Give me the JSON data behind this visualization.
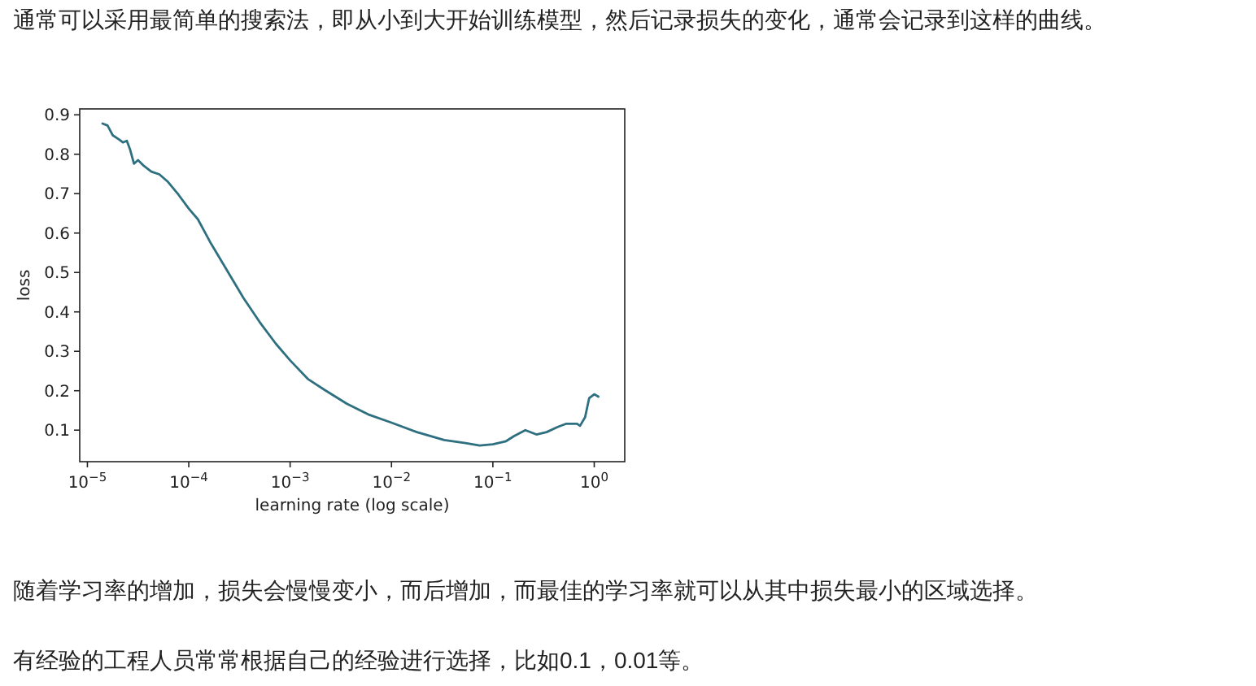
{
  "chart_data": {
    "type": "line",
    "xlabel": "learning rate (log scale)",
    "ylabel": "loss",
    "log": "x",
    "grid": false,
    "annotations": [
      "通常可以采用最简单的搜索法，即从小到大开始训练模型，然后记录损失的变化，通常会记录到这样的曲线。",
      "随着学习率的增加，损失会慢慢变小，而后增加，而最佳的学习率就可以从其中损失最小的区域选择。",
      "有经验的工程人员常常根据自己的经验进行选择，比如0.1，0.01等。"
    ],
    "xlim": [
      8.4e-06,
      2.0
    ],
    "ylim": [
      0.02,
      0.915
    ],
    "xticks": [
      {
        "value": 1e-05,
        "label": "10$^{−5}$"
      },
      {
        "value": 0.0001,
        "label": "10$^{−4}$"
      },
      {
        "value": 0.001,
        "label": "10$^{−3}$"
      },
      {
        "value": 0.01,
        "label": "10$^{−2}$"
      },
      {
        "value": 0.1,
        "label": "10$^{−1}$"
      },
      {
        "value": 1,
        "label": "10$^{0}$"
      }
    ],
    "yticks": [
      0.1,
      0.2,
      0.3,
      0.4,
      0.5,
      0.6,
      0.7,
      0.8,
      0.9
    ],
    "series": [
      {
        "color": "#2e6f80",
        "x": [
          1.41e-05,
          1.58e-05,
          1.78e-05,
          2.04e-05,
          2.24e-05,
          2.45e-05,
          2.63e-05,
          2.88e-05,
          3.16e-05,
          3.55e-05,
          4.27e-05,
          5.13e-05,
          6.17e-05,
          7.94e-05,
          0.0001,
          0.000123,
          0.000166,
          0.00024,
          0.000347,
          0.000501,
          0.000724,
          0.001,
          0.00151,
          0.00219,
          0.00363,
          0.00589,
          0.01,
          0.0178,
          0.0331,
          0.0537,
          0.0741,
          0.1,
          0.135,
          0.162,
          0.209,
          0.269,
          0.339,
          0.437,
          0.525,
          0.676,
          0.724,
          0.813,
          0.891,
          1.0,
          1.1
        ],
        "values": [
          0.878,
          0.873,
          0.848,
          0.838,
          0.83,
          0.834,
          0.813,
          0.776,
          0.785,
          0.772,
          0.756,
          0.749,
          0.731,
          0.697,
          0.662,
          0.635,
          0.573,
          0.504,
          0.435,
          0.374,
          0.319,
          0.277,
          0.229,
          0.202,
          0.167,
          0.14,
          0.119,
          0.095,
          0.075,
          0.067,
          0.061,
          0.064,
          0.072,
          0.085,
          0.1,
          0.089,
          0.095,
          0.108,
          0.116,
          0.116,
          0.111,
          0.133,
          0.181,
          0.191,
          0.185
        ]
      }
    ]
  }
}
